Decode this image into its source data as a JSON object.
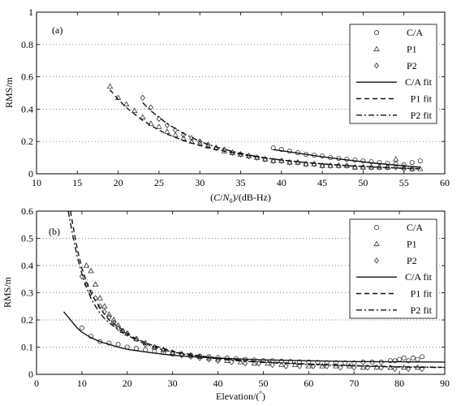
{
  "chart_data": [
    {
      "type": "scatter",
      "panel_label": "(a)",
      "title": "",
      "xlabel_parts": [
        "(",
        "C",
        "/",
        "N",
        "0",
        ")/(dB-Hz)"
      ],
      "ylabel": "RMS/m",
      "xlim": [
        10,
        60
      ],
      "ylim": [
        0,
        1
      ],
      "xticks": [
        10,
        15,
        20,
        25,
        30,
        35,
        40,
        45,
        50,
        55,
        60
      ],
      "yticks": [
        0,
        0.2,
        0.4,
        0.6,
        0.8,
        1
      ],
      "ytick_labels": [
        "0",
        "0.2",
        "0.4",
        "0.6",
        "0.8",
        "1"
      ],
      "grid": "horizontal-dotted",
      "legend_position": "top-right",
      "legend": [
        "C/A",
        "P1",
        "P2",
        "C/A fit",
        "P1 fit",
        "P2 fit"
      ],
      "series": [
        {
          "name": "C/A",
          "marker": "circle",
          "x": [
            39,
            40,
            41,
            42,
            43,
            44,
            45,
            46,
            47,
            48,
            49,
            50,
            51,
            52,
            53,
            54,
            55,
            56,
            57
          ],
          "y": [
            0.16,
            0.15,
            0.14,
            0.13,
            0.12,
            0.115,
            0.11,
            0.1,
            0.095,
            0.09,
            0.085,
            0.08,
            0.075,
            0.07,
            0.065,
            0.06,
            0.055,
            0.07,
            0.08
          ]
        },
        {
          "name": "P1",
          "marker": "triangle",
          "x": [
            19,
            20,
            21,
            22,
            23,
            24,
            25,
            26,
            27,
            28,
            29,
            30,
            31,
            32,
            33,
            34,
            35,
            36,
            37,
            38,
            39,
            40,
            41,
            42,
            43,
            44,
            45,
            46,
            47,
            48,
            49,
            50,
            51,
            52,
            53,
            54,
            55,
            56,
            57
          ],
          "y": [
            0.54,
            0.47,
            0.43,
            0.39,
            0.35,
            0.31,
            0.29,
            0.26,
            0.24,
            0.22,
            0.2,
            0.19,
            0.17,
            0.16,
            0.14,
            0.13,
            0.12,
            0.11,
            0.1,
            0.09,
            0.08,
            0.08,
            0.07,
            0.07,
            0.06,
            0.06,
            0.05,
            0.05,
            0.05,
            0.05,
            0.04,
            0.04,
            0.04,
            0.04,
            0.04,
            0.09,
            0.04,
            0.03,
            0.03
          ]
        },
        {
          "name": "P2",
          "marker": "diamond",
          "x": [
            23,
            24,
            25,
            26,
            27,
            28,
            29,
            30,
            31,
            32,
            33,
            34,
            35,
            36,
            37,
            38,
            39,
            40,
            41,
            42,
            43,
            44,
            45,
            46,
            47,
            48,
            49,
            50,
            51,
            52,
            53,
            54,
            55,
            56
          ],
          "y": [
            0.47,
            0.41,
            0.34,
            0.3,
            0.27,
            0.24,
            0.22,
            0.2,
            0.18,
            0.16,
            0.15,
            0.13,
            0.12,
            0.11,
            0.1,
            0.09,
            0.08,
            0.08,
            0.07,
            0.07,
            0.06,
            0.06,
            0.05,
            0.05,
            0.05,
            0.05,
            0.04,
            0.04,
            0.04,
            0.04,
            0.04,
            0.04,
            0.03,
            0.03
          ]
        }
      ],
      "fits": [
        {
          "name": "C/A fit",
          "style": "solid",
          "x": [
            39,
            41,
            43,
            45,
            47,
            49,
            51,
            53,
            55,
            57
          ],
          "y": [
            0.15,
            0.135,
            0.12,
            0.105,
            0.092,
            0.08,
            0.068,
            0.058,
            0.049,
            0.04
          ]
        },
        {
          "name": "P1 fit",
          "style": "dashed",
          "x": [
            19,
            20,
            21,
            22,
            23,
            24,
            25,
            26,
            28,
            30,
            32,
            34,
            36,
            38,
            40,
            42,
            44,
            46,
            48,
            50,
            52,
            54,
            57
          ],
          "y": [
            0.52,
            0.46,
            0.41,
            0.37,
            0.33,
            0.3,
            0.27,
            0.245,
            0.205,
            0.175,
            0.15,
            0.13,
            0.112,
            0.097,
            0.085,
            0.075,
            0.066,
            0.058,
            0.051,
            0.045,
            0.04,
            0.036,
            0.03
          ]
        },
        {
          "name": "P2 fit",
          "style": "dashdot",
          "x": [
            23,
            24,
            25,
            26,
            27,
            28,
            30,
            32,
            34,
            36,
            38,
            40,
            42,
            44,
            46,
            48,
            50,
            52,
            54,
            57
          ],
          "y": [
            0.44,
            0.39,
            0.35,
            0.31,
            0.28,
            0.25,
            0.2,
            0.165,
            0.138,
            0.116,
            0.099,
            0.085,
            0.074,
            0.065,
            0.057,
            0.05,
            0.045,
            0.04,
            0.036,
            0.031
          ]
        }
      ]
    },
    {
      "type": "scatter",
      "panel_label": "(b)",
      "title": "",
      "xlabel_parts": [
        "Elevation/(",
        "°",
        ")"
      ],
      "ylabel": "RMS/m",
      "xlim": [
        0,
        90
      ],
      "ylim": [
        0,
        0.6
      ],
      "xticks": [
        0,
        10,
        20,
        30,
        40,
        50,
        60,
        70,
        80,
        90
      ],
      "yticks": [
        0,
        0.1,
        0.2,
        0.3,
        0.4,
        0.5,
        0.6
      ],
      "ytick_labels": [
        "0",
        "0.1",
        "0.2",
        "0.3",
        "0.4",
        "0.5",
        "0.6"
      ],
      "grid": "horizontal-dotted",
      "legend_position": "top-right",
      "legend": [
        "C/A",
        "P1",
        "P2",
        "C/A fit",
        "P1 fit",
        "P2 fit"
      ],
      "series": [
        {
          "name": "C/A",
          "marker": "circle",
          "x": [
            10,
            12,
            14,
            16,
            18,
            20,
            22,
            24,
            26,
            28,
            30,
            32,
            34,
            36,
            38,
            40,
            42,
            44,
            46,
            48,
            50,
            52,
            54,
            56,
            58,
            60,
            62,
            64,
            66,
            68,
            70,
            72,
            74,
            76,
            78,
            79,
            80,
            81,
            82,
            83,
            84,
            85
          ],
          "y": [
            0.17,
            0.14,
            0.12,
            0.115,
            0.11,
            0.1,
            0.095,
            0.09,
            0.085,
            0.08,
            0.075,
            0.072,
            0.07,
            0.067,
            0.065,
            0.062,
            0.06,
            0.058,
            0.055,
            0.053,
            0.05,
            0.05,
            0.048,
            0.047,
            0.046,
            0.045,
            0.044,
            0.043,
            0.043,
            0.042,
            0.042,
            0.045,
            0.045,
            0.045,
            0.05,
            0.05,
            0.055,
            0.06,
            0.05,
            0.06,
            0.055,
            0.065
          ]
        },
        {
          "name": "P1",
          "marker": "triangle",
          "x": [
            11,
            12,
            13,
            14,
            15,
            16,
            17,
            18,
            19,
            20,
            22,
            24,
            26,
            28,
            30,
            32,
            34,
            36,
            38,
            40,
            42,
            45,
            48,
            51,
            54,
            57,
            60,
            63,
            66,
            69,
            72,
            75,
            78,
            81,
            84
          ],
          "y": [
            0.4,
            0.38,
            0.33,
            0.28,
            0.25,
            0.22,
            0.2,
            0.18,
            0.16,
            0.15,
            0.13,
            0.115,
            0.1,
            0.09,
            0.08,
            0.075,
            0.07,
            0.065,
            0.06,
            0.055,
            0.05,
            0.045,
            0.04,
            0.04,
            0.035,
            0.035,
            0.03,
            0.03,
            0.03,
            0.03,
            0.025,
            0.025,
            0.025,
            0.025,
            0.025
          ]
        },
        {
          "name": "P2",
          "marker": "diamond",
          "x": [
            10,
            11,
            12,
            13,
            14,
            15,
            16,
            17,
            18,
            19,
            20,
            22,
            24,
            26,
            28,
            30,
            32,
            34,
            36,
            38,
            40,
            43,
            46,
            49,
            52,
            55,
            58,
            61,
            64,
            67,
            70,
            73,
            76,
            79,
            82,
            85
          ],
          "y": [
            0.36,
            0.33,
            0.3,
            0.28,
            0.25,
            0.23,
            0.21,
            0.19,
            0.17,
            0.16,
            0.15,
            0.13,
            0.11,
            0.1,
            0.09,
            0.08,
            0.07,
            0.065,
            0.06,
            0.055,
            0.05,
            0.045,
            0.04,
            0.04,
            0.035,
            0.03,
            0.03,
            0.03,
            0.03,
            0.025,
            0.025,
            0.025,
            0.025,
            0.02,
            0.02,
            0.02
          ]
        }
      ],
      "fits": [
        {
          "name": "C/A fit",
          "style": "solid",
          "x": [
            6,
            7,
            8,
            9,
            10,
            12,
            14,
            16,
            18,
            20,
            25,
            30,
            35,
            40,
            50,
            60,
            70,
            80,
            90
          ],
          "y": [
            0.23,
            0.21,
            0.19,
            0.17,
            0.155,
            0.135,
            0.12,
            0.11,
            0.1,
            0.092,
            0.08,
            0.07,
            0.064,
            0.06,
            0.053,
            0.05,
            0.047,
            0.046,
            0.045
          ]
        },
        {
          "name": "P1 fit",
          "style": "dashed",
          "x": [
            7.5,
            8,
            9,
            10,
            11,
            12,
            13,
            14,
            15,
            16,
            18,
            20,
            22,
            25,
            28,
            30,
            35,
            40,
            45,
            50,
            60,
            70,
            80,
            90
          ],
          "y": [
            0.6,
            0.55,
            0.46,
            0.39,
            0.34,
            0.3,
            0.27,
            0.245,
            0.22,
            0.2,
            0.175,
            0.15,
            0.13,
            0.11,
            0.095,
            0.085,
            0.07,
            0.06,
            0.052,
            0.046,
            0.038,
            0.032,
            0.028,
            0.026
          ]
        },
        {
          "name": "P2 fit",
          "style": "dashdot",
          "x": [
            7,
            8,
            9,
            10,
            11,
            12,
            13,
            14,
            15,
            16,
            18,
            20,
            22,
            25,
            28,
            30,
            35,
            40,
            45,
            50,
            60,
            70,
            80,
            90
          ],
          "y": [
            0.6,
            0.51,
            0.43,
            0.37,
            0.32,
            0.28,
            0.25,
            0.225,
            0.205,
            0.19,
            0.165,
            0.145,
            0.125,
            0.105,
            0.09,
            0.082,
            0.067,
            0.057,
            0.049,
            0.044,
            0.036,
            0.031,
            0.027,
            0.025
          ]
        }
      ]
    }
  ]
}
